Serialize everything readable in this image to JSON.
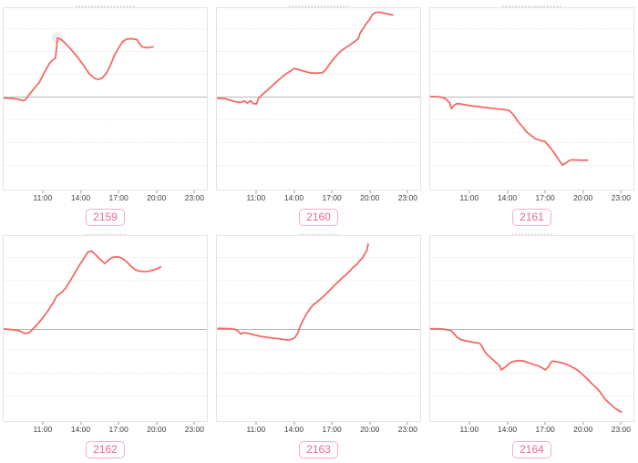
{
  "colors": {
    "line": "#f46964",
    "baseline": "#b8b8b8",
    "grid": "#e9e9e9",
    "border": "#e4e4e4",
    "tick": "#3f3f3f",
    "badge_text": "#e96a8f",
    "badge_border": "#f5afc6",
    "halo": "#ededed",
    "smudge": "#a8a8a8"
  },
  "chart_data": {
    "type": "line",
    "layout": {
      "rows": 2,
      "cols": 3,
      "grid": "horizontal dotted gridlines, solid gray baseline (reference close) near mid-height, no y tick labels",
      "gridlines_pct": [
        11.1,
        23.6,
        36.2,
        61.3,
        73.9,
        86.4
      ]
    },
    "x_axis": {
      "ticks": [
        "11:00",
        "14:00",
        "17:00",
        "20:00",
        "23:00"
      ],
      "tick_positions_pct": [
        19.5,
        38.0,
        56.5,
        75.0,
        93.5
      ]
    },
    "charts": [
      {
        "label": "2159",
        "baseline_pct": 48.7,
        "peak_halo": {
          "x": 26.5,
          "y": 16.5
        },
        "points_pct_xy_from_topleft": [
          [
            0,
            49.5
          ],
          [
            4,
            49.7
          ],
          [
            7.5,
            50.3
          ],
          [
            10,
            51
          ],
          [
            11,
            50
          ],
          [
            13,
            47
          ],
          [
            15.5,
            43.5
          ],
          [
            17.5,
            41
          ],
          [
            20,
            35.5
          ],
          [
            22.5,
            30.5
          ],
          [
            24,
            28.7
          ],
          [
            25.5,
            27.5
          ],
          [
            26.5,
            16.5
          ],
          [
            28,
            17
          ],
          [
            30,
            19
          ],
          [
            33,
            22.5
          ],
          [
            36,
            26.5
          ],
          [
            39,
            31
          ],
          [
            42,
            36
          ],
          [
            44.5,
            38.5
          ],
          [
            46.5,
            39.3
          ],
          [
            48.5,
            38.5
          ],
          [
            50.5,
            36
          ],
          [
            52.5,
            31.5
          ],
          [
            54.5,
            26
          ],
          [
            56.5,
            22
          ],
          [
            58.5,
            18.5
          ],
          [
            60.5,
            17
          ],
          [
            63,
            16.8
          ],
          [
            65.5,
            17.3
          ],
          [
            66.5,
            19
          ],
          [
            68,
            21.3
          ],
          [
            70.5,
            21.8
          ],
          [
            73.5,
            21.3
          ]
        ]
      },
      {
        "label": "2160",
        "baseline_pct": 48.7,
        "points_pct_xy_from_topleft": [
          [
            0,
            49.7
          ],
          [
            4,
            49.9
          ],
          [
            6,
            50.5
          ],
          [
            9,
            51.5
          ],
          [
            11.5,
            52
          ],
          [
            13.5,
            51.2
          ],
          [
            15,
            52.3
          ],
          [
            16.5,
            51
          ],
          [
            18,
            52.6
          ],
          [
            19.5,
            52.8
          ],
          [
            20.5,
            49.6
          ],
          [
            22.5,
            47.5
          ],
          [
            25,
            45
          ],
          [
            27.5,
            42.5
          ],
          [
            30,
            39.9
          ],
          [
            33,
            37
          ],
          [
            36,
            34.8
          ],
          [
            38,
            33.2
          ],
          [
            40,
            33.8
          ],
          [
            43,
            34.8
          ],
          [
            46,
            35.7
          ],
          [
            49,
            35.8
          ],
          [
            52,
            35.5
          ],
          [
            53.5,
            34
          ],
          [
            55.5,
            30.7
          ],
          [
            57.5,
            27.8
          ],
          [
            59.5,
            25.3
          ],
          [
            61,
            23.6
          ],
          [
            63,
            22
          ],
          [
            65,
            20.6
          ],
          [
            67.5,
            18.6
          ],
          [
            69.5,
            16.9
          ],
          [
            70.5,
            13.6
          ],
          [
            72,
            11.1
          ],
          [
            73.5,
            8.5
          ],
          [
            75,
            6.4
          ],
          [
            76.5,
            3.5
          ],
          [
            78,
            2.4
          ],
          [
            80,
            2.2
          ],
          [
            82.5,
            2.8
          ],
          [
            84.5,
            3.3
          ],
          [
            86.5,
            3.7
          ]
        ]
      },
      {
        "label": "2161",
        "baseline_pct": 48.7,
        "points_pct_xy_from_topleft": [
          [
            0,
            48.7
          ],
          [
            4,
            48.8
          ],
          [
            6,
            49.2
          ],
          [
            7.5,
            49.9
          ],
          [
            9.5,
            52.1
          ],
          [
            10.5,
            55.4
          ],
          [
            11.5,
            53.8
          ],
          [
            13,
            52.6
          ],
          [
            15.5,
            52.9
          ],
          [
            20,
            53.8
          ],
          [
            26,
            54.6
          ],
          [
            32,
            55.4
          ],
          [
            36.5,
            55.9
          ],
          [
            38.5,
            56.3
          ],
          [
            39.5,
            57.1
          ],
          [
            41,
            58.8
          ],
          [
            43,
            62.2
          ],
          [
            45.5,
            65.5
          ],
          [
            47.5,
            68.3
          ],
          [
            50,
            70.5
          ],
          [
            52,
            72.2
          ],
          [
            54.5,
            73
          ],
          [
            56.5,
            73.5
          ],
          [
            58,
            75.5
          ],
          [
            60.5,
            78.9
          ],
          [
            62.5,
            82.3
          ],
          [
            65,
            86.4
          ],
          [
            66.5,
            85.6
          ],
          [
            68.5,
            83.9
          ],
          [
            70,
            83.6
          ],
          [
            74,
            83.8
          ],
          [
            77.5,
            83.8
          ]
        ]
      },
      {
        "label": "2162",
        "baseline_pct": 50.2,
        "points_pct_xy_from_topleft": [
          [
            0,
            50.2
          ],
          [
            5.3,
            50.7
          ],
          [
            7.6,
            51.2
          ],
          [
            10.5,
            52.7
          ],
          [
            12.8,
            52.1
          ],
          [
            14.2,
            50.4
          ],
          [
            15.7,
            48.8
          ],
          [
            17.9,
            46
          ],
          [
            20.1,
            43
          ],
          [
            22.4,
            39.4
          ],
          [
            24.6,
            35.6
          ],
          [
            26.1,
            32.4
          ],
          [
            27.6,
            31.2
          ],
          [
            29,
            29.9
          ],
          [
            30.5,
            28.2
          ],
          [
            32.8,
            24.1
          ],
          [
            35,
            20
          ],
          [
            37.2,
            15.9
          ],
          [
            39.4,
            12.2
          ],
          [
            41.6,
            8.5
          ],
          [
            43.1,
            8
          ],
          [
            44.6,
            9.4
          ],
          [
            47.6,
            12.7
          ],
          [
            49.8,
            14.8
          ],
          [
            51.2,
            13.4
          ],
          [
            53.5,
            11.5
          ],
          [
            55.7,
            11.2
          ],
          [
            57.9,
            11.8
          ],
          [
            60.1,
            13.4
          ],
          [
            62.3,
            15.9
          ],
          [
            64.6,
            18.1
          ],
          [
            66.8,
            18.9
          ],
          [
            69,
            19.2
          ],
          [
            71.2,
            19.1
          ],
          [
            73.4,
            18.4
          ],
          [
            75.6,
            17.6
          ],
          [
            77.2,
            16.7
          ]
        ]
      },
      {
        "label": "2163",
        "baseline_pct": 50.2,
        "points_pct_xy_from_topleft": [
          [
            0.6,
            49.9
          ],
          [
            6.5,
            50.1
          ],
          [
            8.8,
            50.4
          ],
          [
            10.2,
            51.2
          ],
          [
            11.7,
            52.9
          ],
          [
            13.2,
            52.2
          ],
          [
            15.4,
            52.6
          ],
          [
            17.6,
            53.2
          ],
          [
            21.3,
            54.2
          ],
          [
            25,
            54.8
          ],
          [
            28.8,
            55.3
          ],
          [
            32.4,
            55.8
          ],
          [
            34.7,
            56.2
          ],
          [
            36.9,
            55.8
          ],
          [
            38.4,
            54.8
          ],
          [
            39.1,
            53.7
          ],
          [
            39.9,
            52.1
          ],
          [
            40.6,
            49.9
          ],
          [
            41.3,
            47.9
          ],
          [
            42.1,
            46.3
          ],
          [
            42.8,
            44.7
          ],
          [
            43.6,
            43
          ],
          [
            44.3,
            41.7
          ],
          [
            45.8,
            39.4
          ],
          [
            47.2,
            37.3
          ],
          [
            48.7,
            36.1
          ],
          [
            51,
            34
          ],
          [
            53.2,
            31.9
          ],
          [
            54.7,
            30.2
          ],
          [
            56.1,
            28.6
          ],
          [
            57.6,
            26.9
          ],
          [
            59.1,
            25.3
          ],
          [
            61.3,
            23
          ],
          [
            63.6,
            20.8
          ],
          [
            65.8,
            18.4
          ],
          [
            67.2,
            16.7
          ],
          [
            68.8,
            15.4
          ],
          [
            70.2,
            13.4
          ],
          [
            71.7,
            11.8
          ],
          [
            72.4,
            10.2
          ],
          [
            73.2,
            8.9
          ],
          [
            73.9,
            7.2
          ],
          [
            74.4,
            4.4
          ]
        ]
      },
      {
        "label": "2164",
        "baseline_pct": 50.2,
        "points_pct_xy_from_topleft": [
          [
            0,
            50.1
          ],
          [
            5.8,
            50.2
          ],
          [
            8.1,
            50.6
          ],
          [
            10.3,
            51.2
          ],
          [
            11.8,
            52.9
          ],
          [
            13.3,
            54.8
          ],
          [
            14.8,
            55.8
          ],
          [
            17,
            56.5
          ],
          [
            19.3,
            57
          ],
          [
            21.5,
            57.5
          ],
          [
            23.8,
            57.8
          ],
          [
            24.5,
            58.1
          ],
          [
            25.2,
            59.1
          ],
          [
            26.8,
            62.4
          ],
          [
            28.3,
            64.4
          ],
          [
            29.7,
            65.7
          ],
          [
            32,
            68
          ],
          [
            34.2,
            70.1
          ],
          [
            35,
            72.3
          ],
          [
            37.2,
            70.6
          ],
          [
            38.7,
            69
          ],
          [
            40.2,
            68
          ],
          [
            41.7,
            67.6
          ],
          [
            43.9,
            67.3
          ],
          [
            46.2,
            67.6
          ],
          [
            48.4,
            68.5
          ],
          [
            50.7,
            69.3
          ],
          [
            52.9,
            70.1
          ],
          [
            55.2,
            71.3
          ],
          [
            56.6,
            72.3
          ],
          [
            58.2,
            70.6
          ],
          [
            59.6,
            68
          ],
          [
            60.4,
            67.6
          ],
          [
            62.6,
            68
          ],
          [
            64.9,
            68.6
          ],
          [
            67.1,
            69.3
          ],
          [
            69.4,
            70.6
          ],
          [
            71.6,
            71.9
          ],
          [
            73.1,
            72.9
          ],
          [
            74.6,
            74.5
          ],
          [
            76.8,
            76.7
          ],
          [
            79,
            79.2
          ],
          [
            81.3,
            81.6
          ],
          [
            83.5,
            84.1
          ],
          [
            85,
            86.6
          ],
          [
            86.5,
            88.7
          ],
          [
            88.8,
            91
          ],
          [
            91,
            93.1
          ],
          [
            92.5,
            94.2
          ],
          [
            94,
            95.1
          ]
        ]
      }
    ]
  }
}
